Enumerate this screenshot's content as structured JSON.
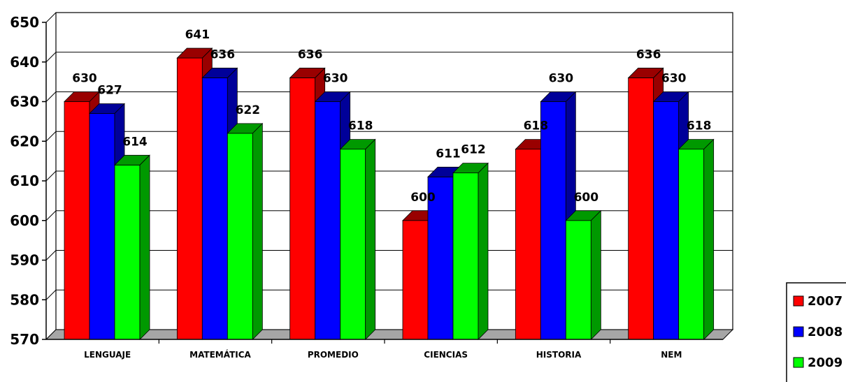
{
  "chart_data": {
    "type": "bar",
    "categories": [
      "LENGUAJE",
      "MATEMÁTICA",
      "PROMEDIO",
      "CIENCIAS",
      "HISTORIA",
      "NEM"
    ],
    "series": [
      {
        "name": "2007",
        "color": "#ff0000",
        "side": "#990000",
        "values": [
          630,
          641,
          636,
          600,
          618,
          636
        ]
      },
      {
        "name": "2008",
        "color": "#0000ff",
        "side": "#000099",
        "values": [
          627,
          636,
          630,
          611,
          630,
          630
        ]
      },
      {
        "name": "2009",
        "color": "#00ff00",
        "side": "#009900",
        "values": [
          614,
          622,
          618,
          612,
          600,
          618
        ]
      }
    ],
    "yticks": [
      570,
      580,
      590,
      600,
      610,
      620,
      630,
      640,
      650
    ],
    "ylim": [
      570,
      650
    ],
    "grid": true,
    "legend": "bottom-right",
    "title": "",
    "xlabel": "",
    "ylabel": ""
  }
}
